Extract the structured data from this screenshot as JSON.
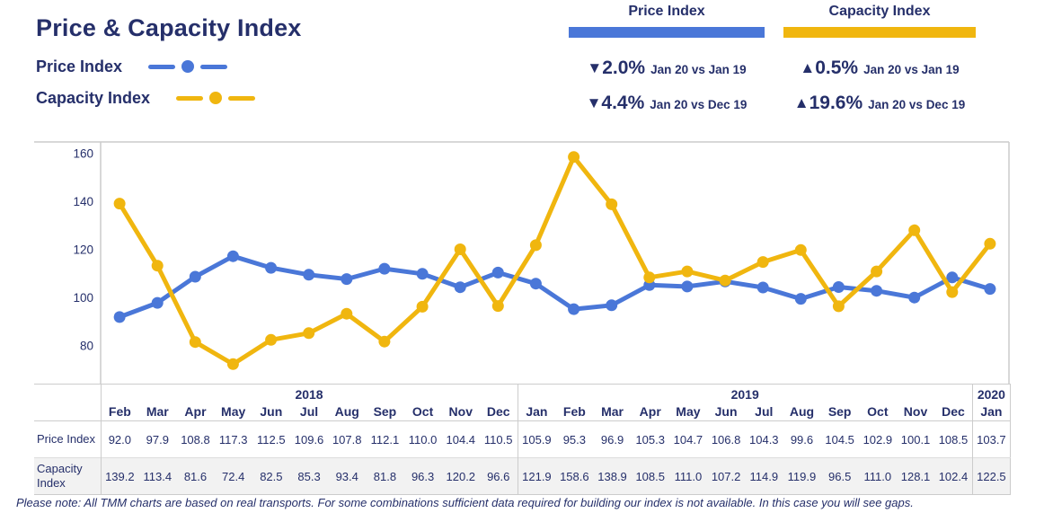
{
  "title": "Price & Capacity Index",
  "colors": {
    "navy": "#252f6a",
    "price_blue": "#4a77d8",
    "capacity_yellow": "#f0b60f",
    "grid": "#cccccc",
    "alt_row_bg": "#f2f2f2"
  },
  "legend": {
    "items": [
      {
        "label": "Price Index",
        "color": "#4a77d8"
      },
      {
        "label": "Capacity Index",
        "color": "#f0b60f"
      }
    ]
  },
  "summary": {
    "blocks": [
      {
        "heading": "Price Index",
        "color": "#4a77d8",
        "rows": [
          {
            "arrow": "▼",
            "pct": "2.0%",
            "period": "Jan 20 vs Jan 19"
          },
          {
            "arrow": "▼",
            "pct": "4.4%",
            "period": "Jan 20 vs Dec 19"
          }
        ]
      },
      {
        "heading": "Capacity Index",
        "color": "#f0b60f",
        "rows": [
          {
            "arrow": "▲",
            "pct": "0.5%",
            "period": "Jan 20 vs Jan 19"
          },
          {
            "arrow": "▲",
            "pct": "19.6%",
            "period": "Jan 20 vs Dec 19"
          }
        ]
      }
    ]
  },
  "chart_data": {
    "type": "line",
    "title": "Price & Capacity Index",
    "categories": [
      "Feb",
      "Mar",
      "Apr",
      "May",
      "Jun",
      "Jul",
      "Aug",
      "Sep",
      "Oct",
      "Nov",
      "Dec",
      "Jan",
      "Feb",
      "Mar",
      "Apr",
      "May",
      "Jun",
      "Jul",
      "Aug",
      "Sep",
      "Oct",
      "Nov",
      "Dec",
      "Jan"
    ],
    "year_groups": [
      {
        "label": "2018",
        "span": 11
      },
      {
        "label": "2019",
        "span": 12
      },
      {
        "label": "2020",
        "span": 1
      }
    ],
    "series": [
      {
        "name": "Price Index",
        "color": "#4a77d8",
        "values": [
          92.0,
          97.9,
          108.8,
          117.3,
          112.5,
          109.6,
          107.8,
          112.1,
          110.0,
          104.4,
          110.5,
          105.9,
          95.3,
          96.9,
          105.3,
          104.7,
          106.8,
          104.3,
          99.6,
          104.5,
          102.9,
          100.1,
          108.5,
          103.7
        ]
      },
      {
        "name": "Capacity Index",
        "color": "#f0b60f",
        "values": [
          139.2,
          113.4,
          81.6,
          72.4,
          82.5,
          85.3,
          93.4,
          81.8,
          96.3,
          120.2,
          96.6,
          121.9,
          158.6,
          138.9,
          108.5,
          111.0,
          107.2,
          114.9,
          119.9,
          96.5,
          111.0,
          128.1,
          102.4,
          122.5
        ]
      }
    ],
    "yticks": [
      160,
      140,
      120,
      100,
      80
    ],
    "ylim": [
      64,
      165
    ],
    "grid": false,
    "legend_position": "top-left"
  },
  "table": {
    "row_labels": [
      "Price Index",
      "Capacity Index"
    ]
  },
  "footer_note": "Please note: All TMM charts are based on real transports. For some combinations sufficient data required for building our index is not available. In this case you will see gaps."
}
